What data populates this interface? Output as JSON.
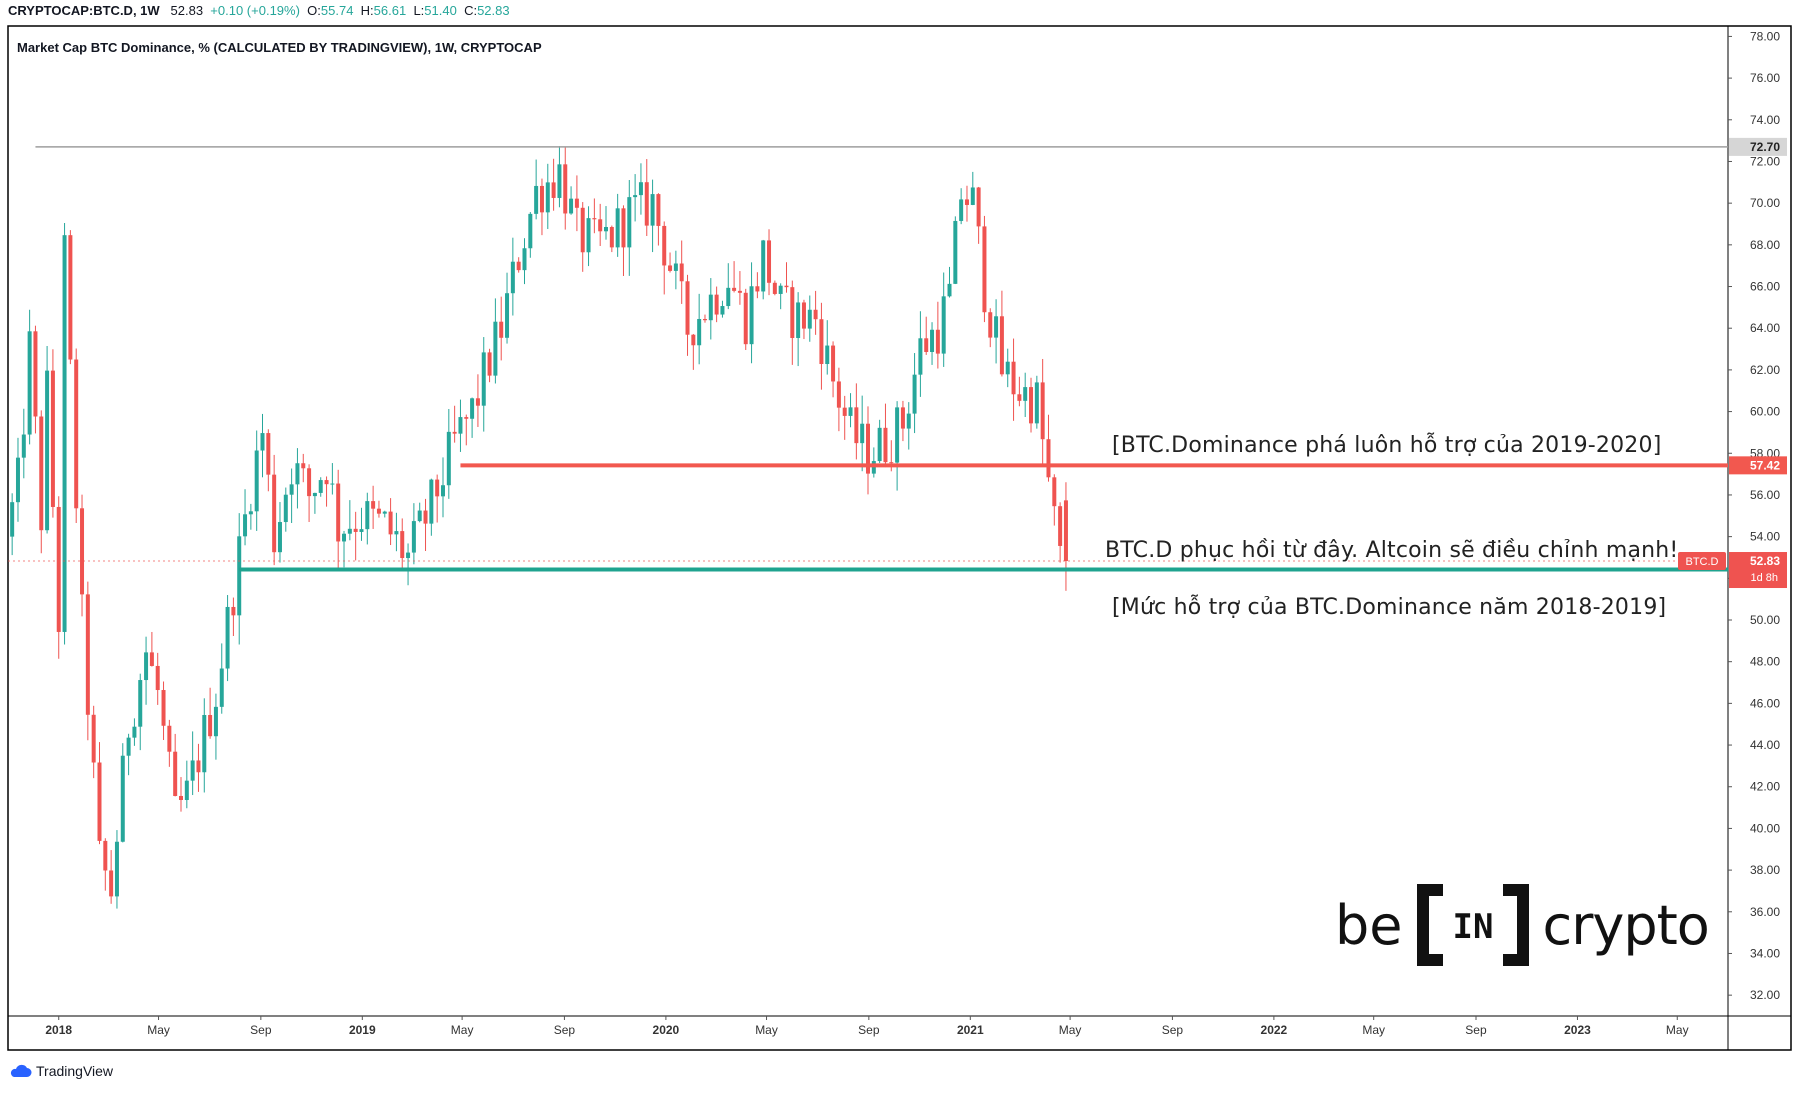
{
  "header": {
    "symbol": "CRYPTOCAP:BTC.D, 1W",
    "last": "52.83",
    "change": "+0.10 (+0.19%)",
    "open_label": "O:",
    "open": "55.74",
    "high_label": "H:",
    "high": "56.61",
    "low_label": "L:",
    "low": "51.40",
    "close_label": "C:",
    "close": "52.83"
  },
  "subtitle": "Market Cap BTC Dominance, % (CALCULATED BY TRADINGVIEW), 1W, CRYPTOCAP",
  "annotations": {
    "resistance_note": "[BTC.Dominance phá luôn hỗ trợ của 2019-2020]",
    "bounce_note": "BTC.D phục hồi từ đây. Altcoin sẽ điều chỉnh mạnh!",
    "support_note": "[Mức hỗ trợ của BTC.Dominance năm 2018-2019]"
  },
  "price_tags": {
    "top_line": "72.70",
    "red_level": "57.42",
    "symbol_tag": "BTC.D",
    "current": "52.83",
    "countdown": "1d 8h",
    "green_level": "52.42"
  },
  "branding": {
    "tradingview": "TradingView",
    "logo_left": "be",
    "logo_mid": "IN",
    "logo_right": "crypto"
  },
  "colors": {
    "up": "#26a69a",
    "down": "#ef5350",
    "red_line": "#f2584f",
    "green_line": "#1fa38f",
    "top_line": "#9e9e9e"
  },
  "chart_data": {
    "type": "candlestick",
    "title": "Market Cap BTC Dominance, % (CALCULATED BY TRADINGVIEW), 1W, CRYPTOCAP",
    "ylim": [
      31.0,
      78.5
    ],
    "y_ticks": [
      "78.00",
      "76.00",
      "74.00",
      "72.00",
      "70.00",
      "68.00",
      "66.00",
      "64.00",
      "62.00",
      "60.00",
      "58.00",
      "56.00",
      "54.00",
      "52.00",
      "50.00",
      "48.00",
      "46.00",
      "44.00",
      "42.00",
      "40.00",
      "38.00",
      "36.00",
      "34.00",
      "32.00"
    ],
    "x_ticks": [
      "2018",
      "May",
      "Sep",
      "2019",
      "May",
      "Sep",
      "2020",
      "May",
      "Sep",
      "2021",
      "May",
      "Sep",
      "2022",
      "May",
      "Sep",
      "2023",
      "May"
    ],
    "x_start": "2017-11-01",
    "x_end": "2023-07-01",
    "horizontal_levels": [
      {
        "value": 72.7,
        "from": "2017-12-04",
        "color": "top_line"
      },
      {
        "value": 57.42,
        "from": "2019-04-29",
        "color": "red_line"
      },
      {
        "value": 52.42,
        "from": "2018-08-06",
        "color": "green_line"
      }
    ],
    "current_price": 52.83,
    "path_points": [
      [
        "2017-11-06",
        54.0
      ],
      [
        "2017-11-20",
        56.5
      ],
      [
        "2017-12-04",
        63.0
      ],
      [
        "2017-12-18",
        55.0
      ],
      [
        "2017-12-25",
        61.0
      ],
      [
        "2018-01-08",
        50.0
      ],
      [
        "2018-01-15",
        67.5
      ],
      [
        "2018-02-05",
        50.0
      ],
      [
        "2018-02-26",
        38.5
      ],
      [
        "2018-03-12",
        37.0
      ],
      [
        "2018-04-02",
        45.0
      ],
      [
        "2018-04-23",
        48.5
      ],
      [
        "2018-05-07",
        46.5
      ],
      [
        "2018-05-28",
        40.5
      ],
      [
        "2018-06-11",
        41.5
      ],
      [
        "2018-06-25",
        43.5
      ],
      [
        "2018-07-16",
        46.5
      ],
      [
        "2018-08-06",
        51.5
      ],
      [
        "2018-08-27",
        56.5
      ],
      [
        "2018-09-10",
        59.0
      ],
      [
        "2018-09-24",
        54.0
      ],
      [
        "2018-10-15",
        57.5
      ],
      [
        "2018-11-05",
        56.0
      ],
      [
        "2018-11-26",
        57.5
      ],
      [
        "2018-12-10",
        54.5
      ],
      [
        "2019-01-07",
        55.0
      ],
      [
        "2019-02-04",
        54.5
      ],
      [
        "2019-03-04",
        53.0
      ],
      [
        "2019-04-01",
        55.5
      ],
      [
        "2019-04-29",
        58.5
      ],
      [
        "2019-05-20",
        60.0
      ],
      [
        "2019-06-10",
        62.5
      ],
      [
        "2019-06-24",
        64.0
      ],
      [
        "2019-07-15",
        67.5
      ],
      [
        "2019-08-05",
        70.5
      ],
      [
        "2019-09-02",
        71.5
      ],
      [
        "2019-09-23",
        68.5
      ],
      [
        "2019-10-14",
        68.0
      ],
      [
        "2019-11-04",
        68.5
      ],
      [
        "2019-11-25",
        69.5
      ],
      [
        "2019-12-23",
        70.0
      ],
      [
        "2020-01-13",
        67.0
      ],
      [
        "2020-02-03",
        64.0
      ],
      [
        "2020-02-24",
        65.0
      ],
      [
        "2020-03-23",
        66.5
      ],
      [
        "2020-04-13",
        64.5
      ],
      [
        "2020-05-04",
        67.5
      ],
      [
        "2020-05-25",
        65.0
      ],
      [
        "2020-06-15",
        64.5
      ],
      [
        "2020-07-06",
        64.5
      ],
      [
        "2020-07-27",
        61.5
      ],
      [
        "2020-08-17",
        59.0
      ],
      [
        "2020-09-07",
        58.0
      ],
      [
        "2020-09-28",
        58.5
      ],
      [
        "2020-10-19",
        59.5
      ],
      [
        "2020-11-09",
        63.0
      ],
      [
        "2020-11-30",
        64.0
      ],
      [
        "2020-12-14",
        65.5
      ],
      [
        "2020-12-28",
        70.5
      ],
      [
        "2021-01-11",
        70.0
      ],
      [
        "2021-01-25",
        66.0
      ],
      [
        "2021-02-15",
        62.0
      ],
      [
        "2021-03-08",
        61.0
      ],
      [
        "2021-03-29",
        60.5
      ],
      [
        "2021-04-12",
        56.5
      ],
      [
        "2021-04-26",
        52.8
      ]
    ]
  }
}
